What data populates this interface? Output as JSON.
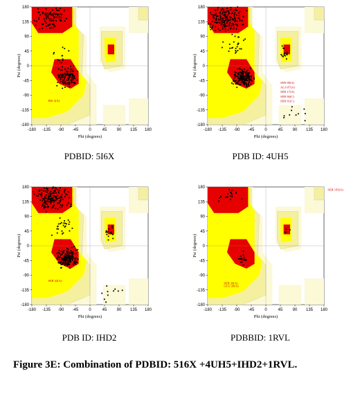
{
  "panels": [
    {
      "id": "5i6x",
      "label": "PDBID: 5I6X",
      "annotations": [
        "HIS 2(A)"
      ],
      "density": "medium"
    },
    {
      "id": "4uh5",
      "label": "PDB ID: 4UH5",
      "annotations": [
        "SER 88(A)",
        "ALA 87(A)",
        "SER 17(A)",
        "SER 86(C)",
        "SER 61(C)"
      ],
      "density": "high"
    },
    {
      "id": "ihd2",
      "label": "PDB ID: IHD2",
      "annotations": [
        "SER 42(A)"
      ],
      "density": "high"
    },
    {
      "id": "1rvl",
      "label": "PDBBID: 1RVL",
      "annotations": [
        "SER 105(A)",
        "SER 29(A)",
        "GLU 20(A)"
      ],
      "density": "low"
    }
  ],
  "axes": {
    "x_label": "Phi (degrees)",
    "y_label": "Psi (degrees)",
    "x_ticks": [
      "-180",
      "-135",
      "-90",
      "-45",
      "0",
      "45",
      "90",
      "135",
      "180"
    ],
    "y_ticks": [
      "180",
      "135",
      "90",
      "45",
      "0",
      "-45",
      "-90",
      "-135",
      "-180"
    ]
  },
  "colors": {
    "core": "#e60000",
    "allowed": "#ffff00",
    "generous": "#f5f0a0",
    "outer": "#fbf9d6",
    "points": "#000000"
  },
  "caption": "Figure 3E: Combination of PDBID: 516X +4UH5+IHD2+1RVL."
}
